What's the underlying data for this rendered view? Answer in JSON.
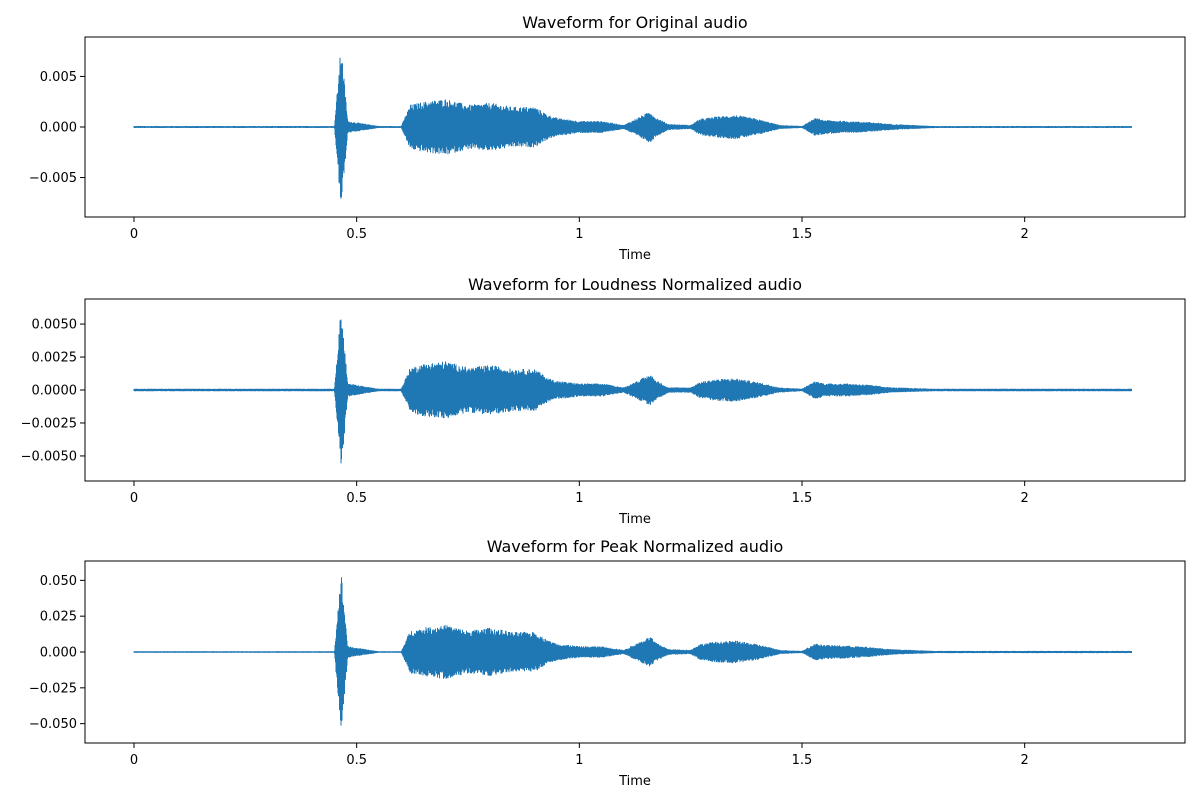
{
  "chart_data": [
    {
      "type": "line",
      "title": "Waveform for Original audio",
      "xlabel": "Time",
      "ylabel": "",
      "xlim": [
        -0.11,
        2.36
      ],
      "ylim": [
        -0.0089,
        0.0089
      ],
      "xticks": [
        0,
        0.5,
        1,
        1.5,
        2
      ],
      "xtick_labels": [
        "0",
        "0.5",
        "1",
        "1.5",
        "2"
      ],
      "yticks": [
        -0.005,
        0.0,
        0.005
      ],
      "ytick_labels": [
        "−0.005",
        "0.000",
        "0.005"
      ],
      "grid": false,
      "color": "#1f77b4",
      "series": [
        {
          "x": [
            0.0,
            0.1,
            0.2,
            0.3,
            0.4,
            0.45,
            0.465,
            0.48,
            0.55,
            0.6,
            0.62,
            0.65,
            0.7,
            0.75,
            0.8,
            0.85,
            0.9,
            0.93,
            0.95,
            1.0,
            1.05,
            1.1,
            1.16,
            1.17,
            1.2,
            1.25,
            1.27,
            1.3,
            1.35,
            1.4,
            1.45,
            1.5,
            1.53,
            1.55,
            1.6,
            1.65,
            1.7,
            1.8,
            1.9,
            2.0,
            2.1,
            2.24
          ],
          "envelope": [
            0.0001,
            0.0001,
            0.0001,
            0.0001,
            0.0001,
            0.0001,
            0.0082,
            0.0006,
            0.0001,
            0.0001,
            0.0022,
            0.0025,
            0.0028,
            0.0022,
            0.0024,
            0.002,
            0.002,
            0.0012,
            0.0009,
            0.0006,
            0.0006,
            0.0002,
            0.0016,
            0.001,
            0.0003,
            0.0002,
            0.0008,
            0.001,
            0.0012,
            0.0008,
            0.0002,
            0.0001,
            0.0009,
            0.0007,
            0.0006,
            0.0005,
            0.0003,
            0.0001,
            0.0001,
            0.0001,
            0.0001,
            0.0001
          ]
        }
      ]
    },
    {
      "type": "line",
      "title": "Waveform for Loudness Normalized audio",
      "xlabel": "Time",
      "ylabel": "",
      "xlim": [
        -0.11,
        2.36
      ],
      "ylim": [
        -0.0069,
        0.0069
      ],
      "xticks": [
        0,
        0.5,
        1,
        1.5,
        2
      ],
      "xtick_labels": [
        "0",
        "0.5",
        "1",
        "1.5",
        "2"
      ],
      "yticks": [
        -0.005,
        -0.0025,
        0.0,
        0.0025,
        0.005
      ],
      "ytick_labels": [
        "−0.0050",
        "−0.0025",
        "0.0000",
        "0.0025",
        "0.0050"
      ],
      "grid": false,
      "color": "#1f77b4",
      "series": [
        {
          "x": [
            0.0,
            0.1,
            0.2,
            0.3,
            0.4,
            0.45,
            0.465,
            0.48,
            0.55,
            0.6,
            0.62,
            0.65,
            0.7,
            0.75,
            0.8,
            0.85,
            0.9,
            0.93,
            0.95,
            1.0,
            1.05,
            1.1,
            1.16,
            1.17,
            1.2,
            1.25,
            1.27,
            1.3,
            1.35,
            1.4,
            1.45,
            1.5,
            1.53,
            1.55,
            1.6,
            1.65,
            1.7,
            1.8,
            1.9,
            2.0,
            2.1,
            2.24
          ],
          "envelope": [
            0.0001,
            0.0001,
            0.0001,
            0.0001,
            0.0001,
            0.0001,
            0.0063,
            0.0005,
            0.0001,
            0.0001,
            0.0017,
            0.002,
            0.0022,
            0.0017,
            0.0019,
            0.0016,
            0.0016,
            0.0009,
            0.0007,
            0.0005,
            0.0005,
            0.0002,
            0.0012,
            0.0008,
            0.0002,
            0.0002,
            0.0006,
            0.0008,
            0.0009,
            0.0006,
            0.0002,
            0.0001,
            0.0007,
            0.0005,
            0.0005,
            0.0004,
            0.0002,
            0.0001,
            0.0001,
            0.0001,
            0.0001,
            0.0001
          ]
        }
      ]
    },
    {
      "type": "line",
      "title": "Waveform for Peak Normalized audio",
      "xlabel": "Time",
      "ylabel": "",
      "xlim": [
        -0.11,
        2.36
      ],
      "ylim": [
        -0.0635,
        0.0635
      ],
      "xticks": [
        0,
        0.5,
        1,
        1.5,
        2
      ],
      "xtick_labels": [
        "0",
        "0.5",
        "1",
        "1.5",
        "2"
      ],
      "yticks": [
        -0.05,
        -0.025,
        0.0,
        0.025,
        0.05
      ],
      "ytick_labels": [
        "−0.050",
        "−0.025",
        "0.000",
        "0.025",
        "0.050"
      ],
      "grid": false,
      "color": "#1f77b4",
      "series": [
        {
          "x": [
            0.0,
            0.1,
            0.2,
            0.3,
            0.4,
            0.45,
            0.465,
            0.48,
            0.55,
            0.6,
            0.62,
            0.65,
            0.7,
            0.75,
            0.8,
            0.85,
            0.9,
            0.93,
            0.95,
            1.0,
            1.05,
            1.1,
            1.16,
            1.17,
            1.2,
            1.25,
            1.27,
            1.3,
            1.35,
            1.4,
            1.45,
            1.5,
            1.53,
            1.55,
            1.6,
            1.65,
            1.7,
            1.8,
            1.9,
            2.0,
            2.1,
            2.24
          ],
          "envelope": [
            0.0005,
            0.0005,
            0.0005,
            0.0005,
            0.0005,
            0.0005,
            0.057,
            0.004,
            0.0005,
            0.0005,
            0.015,
            0.017,
            0.019,
            0.015,
            0.017,
            0.014,
            0.014,
            0.008,
            0.006,
            0.004,
            0.004,
            0.0015,
            0.011,
            0.007,
            0.002,
            0.0015,
            0.0055,
            0.007,
            0.008,
            0.0055,
            0.0015,
            0.0008,
            0.006,
            0.005,
            0.0045,
            0.0035,
            0.002,
            0.0008,
            0.0008,
            0.0008,
            0.0008,
            0.0008
          ]
        }
      ]
    }
  ]
}
